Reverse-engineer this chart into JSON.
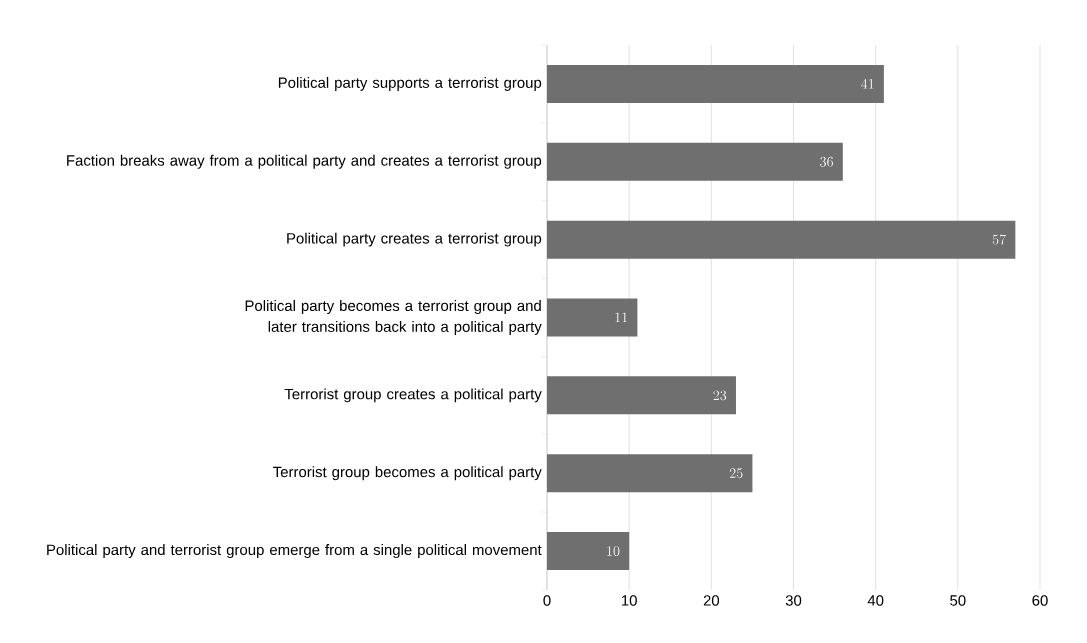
{
  "chart_data": {
    "type": "bar",
    "orientation": "horizontal",
    "categories": [
      "Political party supports a terrorist group",
      "Faction breaks away from a political party and creates a terrorist group",
      "Political party creates a terrorist group",
      "Political party becomes a terrorist group and later transitions back into a political party",
      "Terrorist group creates a political party",
      "Terrorist group becomes a political party",
      "Political party and terrorist group emerge from a single political movement"
    ],
    "values": [
      41,
      36,
      57,
      11,
      23,
      25,
      10
    ],
    "color": "#6f6f6f",
    "xlim": [
      0,
      60
    ],
    "xticks": [
      0,
      10,
      20,
      30,
      40,
      50,
      60
    ],
    "grid": "x",
    "data_labels": true
  }
}
